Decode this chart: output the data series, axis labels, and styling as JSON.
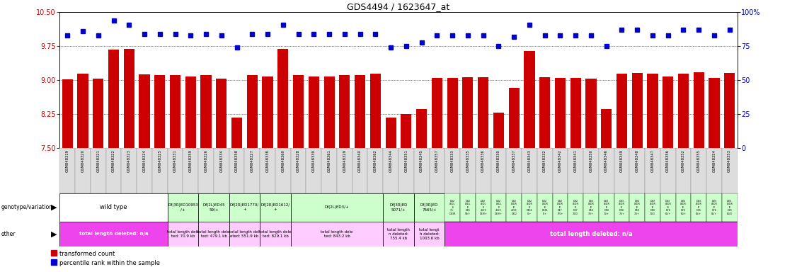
{
  "title": "GDS4494 / 1623647_at",
  "bar_values": [
    9.02,
    9.15,
    9.04,
    9.67,
    9.69,
    9.13,
    9.11,
    9.11,
    9.08,
    9.11,
    9.04,
    8.18,
    9.11,
    9.09,
    9.69,
    9.11,
    9.09,
    9.09,
    9.11,
    9.12,
    9.14,
    8.18,
    8.25,
    8.37,
    9.05,
    9.05,
    9.06,
    9.06,
    8.29,
    8.83,
    9.64,
    9.07,
    9.05,
    9.05,
    9.04,
    8.37,
    9.15,
    9.16,
    9.14,
    9.08,
    9.15,
    9.17,
    9.05,
    9.16
  ],
  "dot_values": [
    83,
    86,
    83,
    94,
    91,
    84,
    84,
    84,
    83,
    84,
    83,
    74,
    84,
    84,
    91,
    84,
    84,
    84,
    84,
    84,
    84,
    74,
    75,
    78,
    83,
    83,
    83,
    83,
    75,
    82,
    91,
    83,
    83,
    83,
    83,
    75,
    87,
    87,
    83,
    83,
    87,
    87,
    83,
    87
  ],
  "sample_labels": [
    "GSM848319",
    "GSM848320",
    "GSM848321",
    "GSM848322",
    "GSM848323",
    "GSM848324",
    "GSM848325",
    "GSM848331",
    "GSM848359",
    "GSM848326",
    "GSM848334",
    "GSM848358",
    "GSM848327",
    "GSM848338",
    "GSM848360",
    "GSM848328",
    "GSM848339",
    "GSM848361",
    "GSM848329",
    "GSM848340",
    "GSM848362",
    "GSM848344",
    "GSM848351",
    "GSM848345",
    "GSM848357",
    "GSM848333",
    "GSM848335",
    "GSM848336",
    "GSM848330",
    "GSM848337",
    "GSM848343",
    "GSM848332",
    "GSM848342",
    "GSM848341",
    "GSM848350",
    "GSM848346",
    "GSM848349",
    "GSM848348",
    "GSM848347",
    "GSM848356",
    "GSM848352",
    "GSM848355",
    "GSM848354",
    "GSM848353"
  ],
  "bar_color": "#cc0000",
  "dot_color": "#0000cc",
  "ylim_left": [
    7.5,
    10.5
  ],
  "ylim_right": [
    0,
    100
  ],
  "yticks_left": [
    7.5,
    8.25,
    9.0,
    9.75,
    10.5
  ],
  "yticks_right": [
    0,
    25,
    50,
    75,
    100
  ],
  "hlines": [
    7.5,
    8.25,
    9.0,
    9.75
  ],
  "geno_groups": [
    {
      "label": "wild type",
      "start": 0,
      "end": 6,
      "color": "#ffffff"
    },
    {
      "label": "Df(3R)ED10953\n/+",
      "start": 7,
      "end": 8,
      "color": "#ccffcc"
    },
    {
      "label": "Df(2L)ED45\n59/+",
      "start": 9,
      "end": 10,
      "color": "#ccffcc"
    },
    {
      "label": "Df(2R)ED1770/\n+",
      "start": 11,
      "end": 12,
      "color": "#ccffcc"
    },
    {
      "label": "Df(2R)ED1612/\n+",
      "start": 13,
      "end": 14,
      "color": "#ccffcc"
    },
    {
      "label": "Df(2L)ED3/+",
      "start": 15,
      "end": 20,
      "color": "#ccffcc"
    },
    {
      "label": "Df(3R)ED\n5071/+",
      "start": 21,
      "end": 22,
      "color": "#ccffcc"
    },
    {
      "label": "Df(3R)ED\n7665/+",
      "start": 23,
      "end": 24,
      "color": "#ccffcc"
    }
  ],
  "other_groups_left": [
    {
      "label": "total length deleted: n/a",
      "start": 0,
      "end": 6,
      "color": "#ee44ee"
    },
    {
      "label": "total length dele\nted: 70.9 kb",
      "start": 7,
      "end": 8,
      "color": "#ffccff"
    },
    {
      "label": "total length dele\nted: 479.1 kb",
      "start": 9,
      "end": 10,
      "color": "#ffccff"
    },
    {
      "label": "total length del\neted: 551.9 kb",
      "start": 11,
      "end": 12,
      "color": "#ffccff"
    },
    {
      "label": "total length dele\nted: 829.1 kb",
      "start": 13,
      "end": 14,
      "color": "#ffccff"
    },
    {
      "label": "total length dele\nted: 843.2 kb",
      "start": 15,
      "end": 20,
      "color": "#ffccff"
    },
    {
      "label": "total length\nn deleted:\n755.4 kb",
      "start": 21,
      "end": 22,
      "color": "#ffccff"
    },
    {
      "label": "total lengt\nh deleted:\n1003.6 kb",
      "start": 23,
      "end": 24,
      "color": "#ffccff"
    }
  ]
}
